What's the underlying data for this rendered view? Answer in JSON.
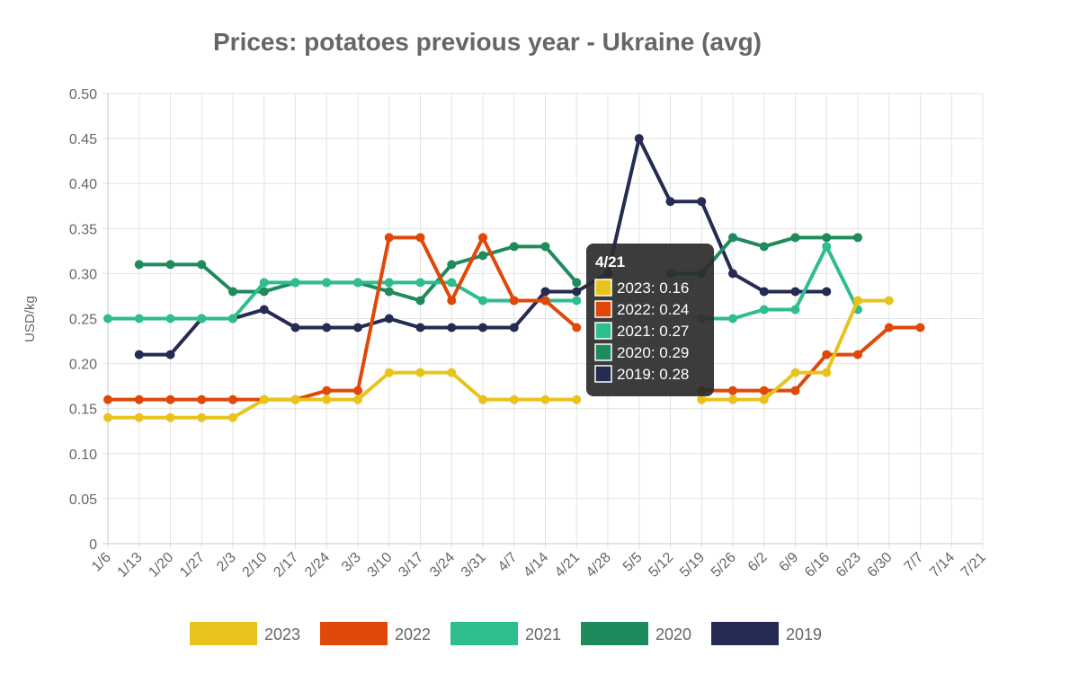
{
  "chart_data": {
    "type": "line",
    "title": "Prices: potatoes previous year - Ukraine (avg)",
    "ylabel": "USD/kg",
    "xlabel": "",
    "ylim": [
      0,
      0.5
    ],
    "yticks": [
      "0",
      "0.05",
      "0.10",
      "0.15",
      "0.20",
      "0.25",
      "0.30",
      "0.35",
      "0.40",
      "0.45",
      "0.50"
    ],
    "grid": true,
    "legend_position": "bottom",
    "categories": [
      "1/6",
      "1/13",
      "1/20",
      "1/27",
      "2/3",
      "2/10",
      "2/17",
      "2/24",
      "3/3",
      "3/10",
      "3/17",
      "3/24",
      "3/31",
      "4/7",
      "4/14",
      "4/21",
      "4/28",
      "5/5",
      "5/12",
      "5/19",
      "5/26",
      "6/2",
      "6/9",
      "6/16",
      "6/23",
      "6/30",
      "7/7",
      "7/14",
      "7/21"
    ],
    "series": [
      {
        "name": "2023",
        "color": "#e8c31b",
        "values": [
          0.14,
          0.14,
          0.14,
          0.14,
          0.14,
          0.16,
          0.16,
          0.16,
          0.16,
          0.19,
          0.19,
          0.19,
          0.16,
          0.16,
          0.16,
          0.16,
          null,
          null,
          null,
          0.16,
          0.16,
          0.16,
          0.19,
          0.19,
          0.27,
          0.27,
          null,
          null,
          null
        ]
      },
      {
        "name": "2022",
        "color": "#e0480a",
        "values": [
          0.16,
          0.16,
          0.16,
          0.16,
          0.16,
          0.16,
          0.16,
          0.17,
          0.17,
          0.34,
          0.34,
          0.27,
          0.34,
          0.27,
          0.27,
          0.24,
          null,
          null,
          null,
          0.17,
          0.17,
          0.17,
          0.17,
          0.21,
          0.21,
          0.24,
          0.24,
          null,
          null
        ]
      },
      {
        "name": "2021",
        "color": "#2ebd8c",
        "values": [
          0.25,
          0.25,
          0.25,
          0.25,
          0.25,
          0.29,
          0.29,
          0.29,
          0.29,
          0.29,
          0.29,
          0.29,
          0.27,
          0.27,
          0.27,
          0.27,
          null,
          null,
          null,
          0.25,
          0.25,
          0.26,
          0.26,
          0.33,
          0.26,
          null,
          null,
          null,
          null
        ]
      },
      {
        "name": "2020",
        "color": "#1f8a5c",
        "values": [
          null,
          0.31,
          0.31,
          0.31,
          0.28,
          0.28,
          0.29,
          0.29,
          0.29,
          0.28,
          0.27,
          0.31,
          0.32,
          0.33,
          0.33,
          0.29,
          null,
          null,
          0.3,
          0.3,
          0.34,
          0.33,
          0.34,
          0.34,
          0.34,
          null,
          null,
          null,
          null
        ]
      },
      {
        "name": "2019",
        "color": "#252b52",
        "values": [
          null,
          0.21,
          0.21,
          0.25,
          0.25,
          0.26,
          0.24,
          0.24,
          0.24,
          0.25,
          0.24,
          0.24,
          0.24,
          0.24,
          0.28,
          0.28,
          0.3,
          0.45,
          0.38,
          0.38,
          0.3,
          0.28,
          0.28,
          0.28,
          null,
          null,
          null,
          null,
          null
        ]
      }
    ],
    "tooltip": {
      "title": "4/21",
      "items": [
        {
          "text": "2023: 0.16",
          "color": "#e8c31b"
        },
        {
          "text": "2022: 0.24",
          "color": "#e0480a"
        },
        {
          "text": "2021: 0.27",
          "color": "#2ebd8c"
        },
        {
          "text": "2020: 0.29",
          "color": "#1f8a5c"
        },
        {
          "text": "2019: 0.28",
          "color": "#252b52"
        }
      ]
    }
  }
}
